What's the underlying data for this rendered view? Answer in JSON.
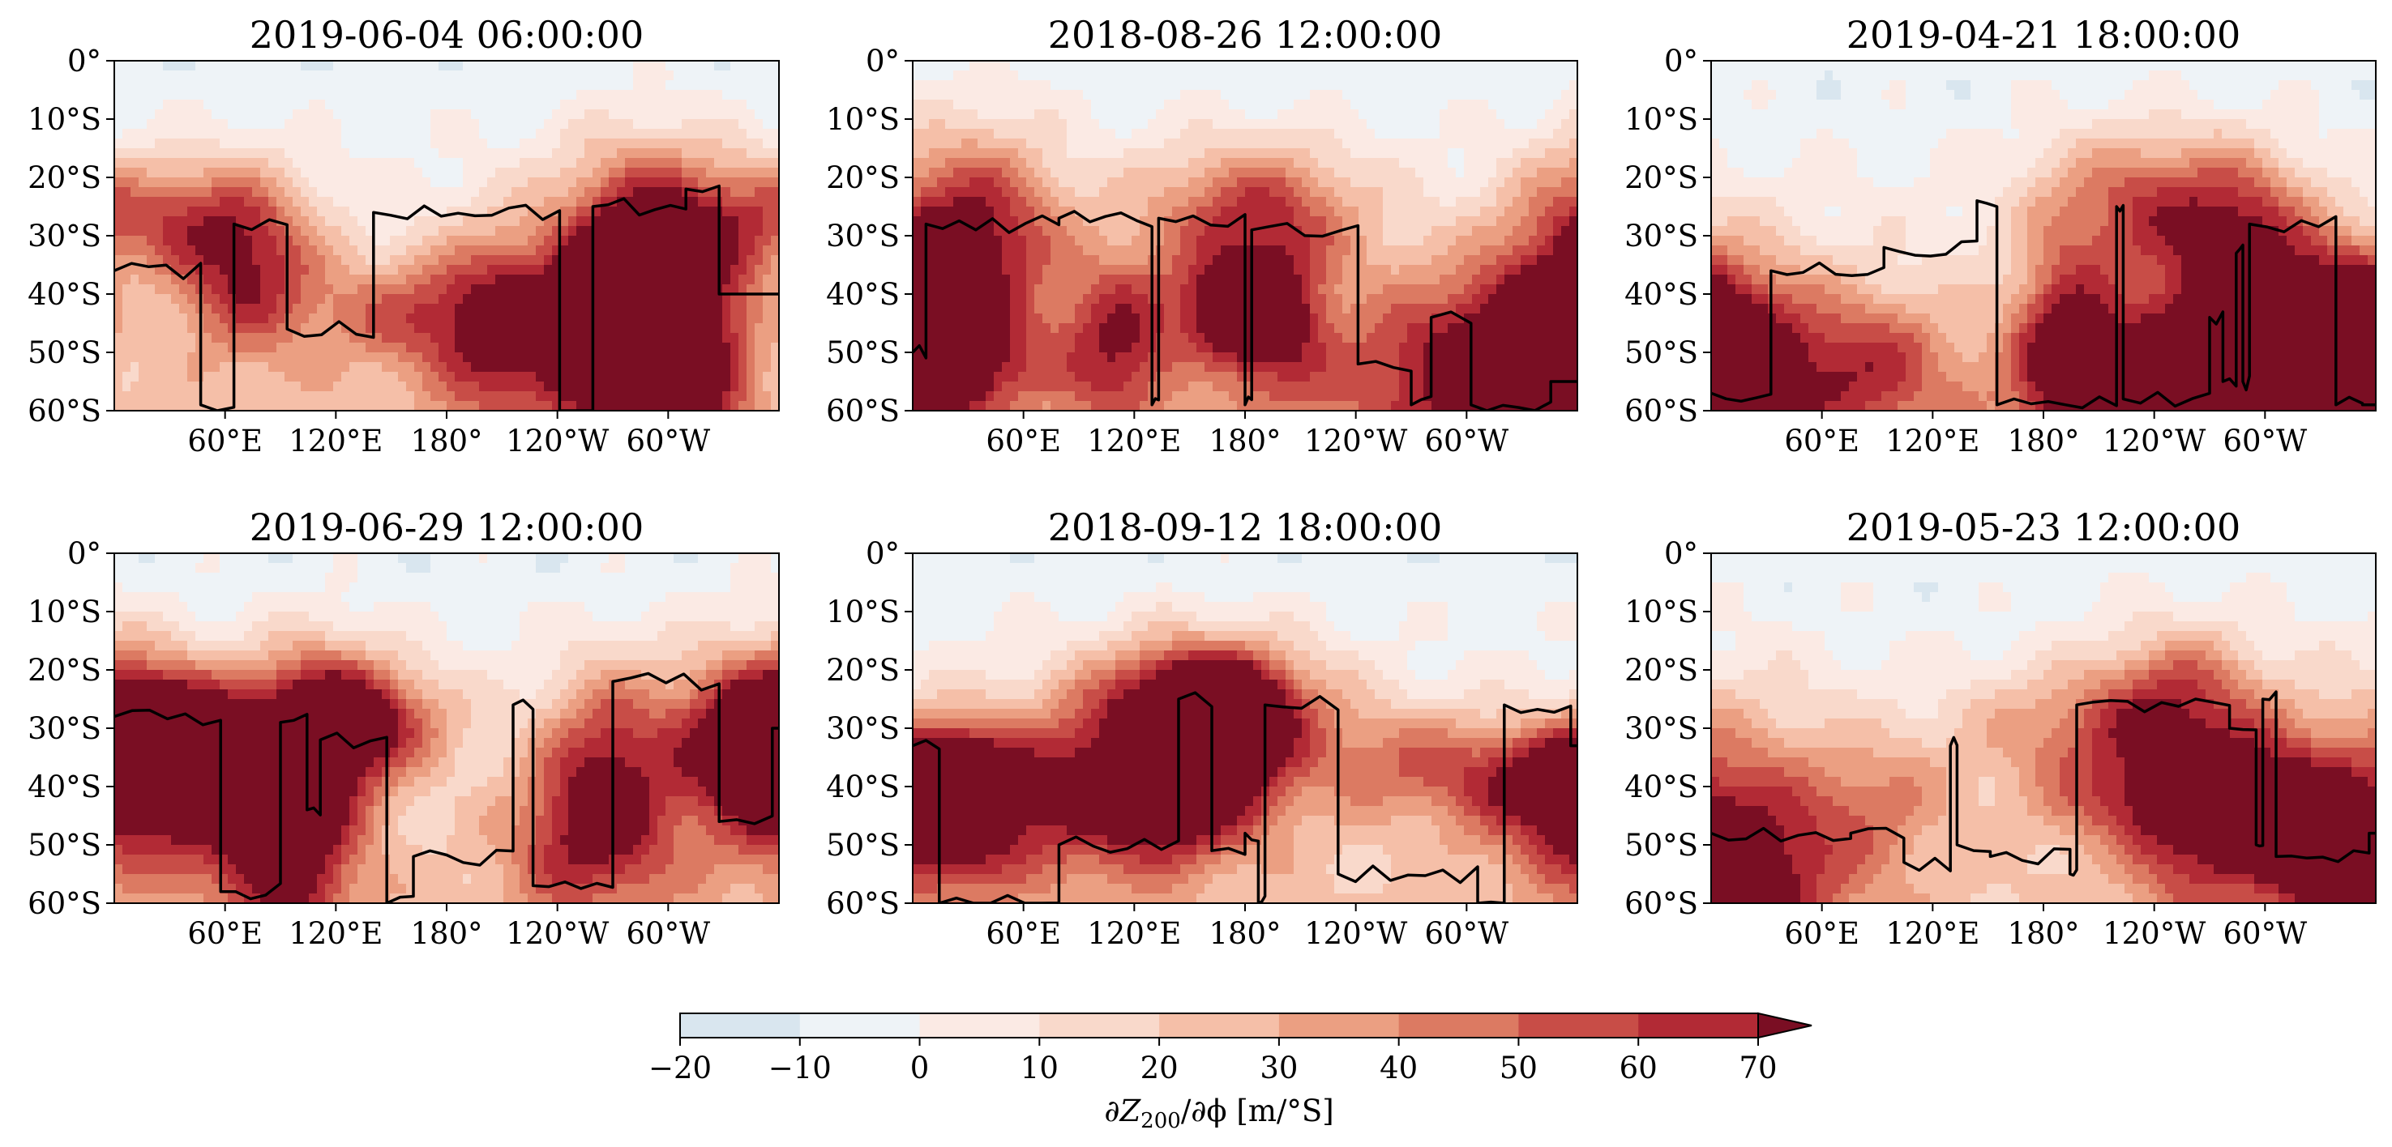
{
  "figure": {
    "panels": [
      {
        "title": "2019-06-04 06:00:00",
        "seed": 11,
        "line_start": 36,
        "line_jumps": [
          [
            0.13,
            59
          ],
          [
            0.18,
            28
          ],
          [
            0.26,
            46
          ],
          [
            0.39,
            26
          ],
          [
            0.67,
            60
          ],
          [
            0.72,
            25
          ],
          [
            0.86,
            22
          ],
          [
            0.91,
            40
          ]
        ]
      },
      {
        "title": "2018-08-26 12:00:00",
        "seed": 23,
        "line_start": 50,
        "line_jumps": [
          [
            0.02,
            28
          ],
          [
            0.22,
            27
          ],
          [
            0.36,
            59
          ],
          [
            0.37,
            27
          ],
          [
            0.5,
            59
          ],
          [
            0.51,
            29
          ],
          [
            0.67,
            52
          ],
          [
            0.75,
            59
          ],
          [
            0.78,
            44
          ],
          [
            0.84,
            59
          ],
          [
            0.96,
            55
          ]
        ]
      },
      {
        "title": "2019-04-21 18:00:00",
        "seed": 37,
        "line_start": 57,
        "line_jumps": [
          [
            0.09,
            36
          ],
          [
            0.26,
            32
          ],
          [
            0.4,
            24
          ],
          [
            0.43,
            59
          ],
          [
            0.61,
            25
          ],
          [
            0.62,
            58
          ],
          [
            0.75,
            44
          ],
          [
            0.77,
            55
          ],
          [
            0.79,
            33
          ],
          [
            0.8,
            55
          ],
          [
            0.81,
            28
          ],
          [
            0.94,
            59
          ],
          [
            0.98,
            59
          ]
        ]
      },
      {
        "title": "2019-06-29 12:00:00",
        "seed": 41,
        "line_start": 28,
        "line_jumps": [
          [
            0.16,
            58
          ],
          [
            0.25,
            29
          ],
          [
            0.29,
            44
          ],
          [
            0.31,
            32
          ],
          [
            0.41,
            60
          ],
          [
            0.45,
            52
          ],
          [
            0.6,
            26
          ],
          [
            0.63,
            57
          ],
          [
            0.75,
            22
          ],
          [
            0.91,
            46
          ],
          [
            0.99,
            30
          ]
        ]
      },
      {
        "title": "2018-09-12 18:00:00",
        "seed": 53,
        "line_start": 33,
        "line_jumps": [
          [
            0.04,
            60
          ],
          [
            0.22,
            50
          ],
          [
            0.4,
            42
          ],
          [
            0.4,
            25
          ],
          [
            0.45,
            51
          ],
          [
            0.5,
            48
          ],
          [
            0.52,
            60
          ],
          [
            0.53,
            26
          ],
          [
            0.64,
            55
          ],
          [
            0.85,
            60
          ],
          [
            0.89,
            26
          ],
          [
            0.99,
            33
          ]
        ]
      },
      {
        "title": "2019-05-23 12:00:00",
        "seed": 67,
        "line_start": 48,
        "line_jumps": [
          [
            0.21,
            48
          ],
          [
            0.29,
            53
          ],
          [
            0.36,
            33
          ],
          [
            0.37,
            50
          ],
          [
            0.42,
            52
          ],
          [
            0.54,
            55
          ],
          [
            0.55,
            26
          ],
          [
            0.78,
            30
          ],
          [
            0.82,
            50
          ],
          [
            0.83,
            25
          ],
          [
            0.85,
            52
          ],
          [
            0.99,
            48
          ]
        ]
      }
    ],
    "y_ticks": [
      "0°",
      "10°S",
      "20°S",
      "30°S",
      "40°S",
      "50°S",
      "60°S"
    ],
    "x_ticks": [
      {
        "label": "60°E",
        "lon": 60
      },
      {
        "label": "120°E",
        "lon": 120
      },
      {
        "label": "180°",
        "lon": 180
      },
      {
        "label": "120°W",
        "lon": 240
      },
      {
        "label": "60°W",
        "lon": 300
      }
    ],
    "lon_range": [
      0,
      360
    ],
    "lat_range": [
      0,
      -60
    ],
    "colorbar": {
      "ticks": [
        "−20",
        "−10",
        "0",
        "10",
        "20",
        "30",
        "40",
        "50",
        "60",
        "70"
      ],
      "levels": [
        -20,
        -10,
        0,
        10,
        20,
        30,
        40,
        50,
        60,
        70
      ],
      "colors": [
        "#d9e6ef",
        "#eef3f7",
        "#fbeae4",
        "#f9d9cb",
        "#f5bfa8",
        "#eb9f82",
        "#dc7a62",
        "#c84d47",
        "#b22a35"
      ],
      "extend_color": "#7a0e23",
      "label_main": "∂Z",
      "label_sub": "200",
      "label_rest": "/∂ϕ [m/°S]"
    }
  }
}
